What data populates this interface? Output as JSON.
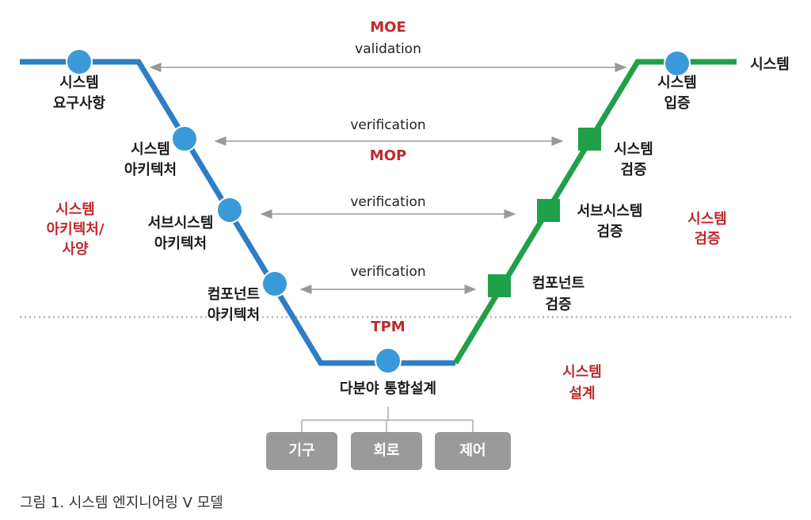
{
  "top": {
    "moe": "MOE",
    "validation": "validation",
    "mop": "MOP",
    "tpm": "TPM"
  },
  "verification": [
    "verification",
    "verification",
    "verification"
  ],
  "left_nodes": [
    {
      "lines": [
        "시스템",
        "요구사항"
      ]
    },
    {
      "lines": [
        "시스템",
        "아키텍처"
      ]
    },
    {
      "lines": [
        "서브시스템",
        "아키텍처"
      ]
    },
    {
      "lines": [
        "컴포넌트",
        "아키텍처"
      ]
    }
  ],
  "bottom_node": "다분야 통합설계",
  "right_nodes": [
    {
      "lines": [
        "시스템",
        "입증"
      ]
    },
    {
      "lines": [
        "시스템",
        "검증"
      ]
    },
    {
      "lines": [
        "서브시스템",
        "검증"
      ]
    },
    {
      "lines": [
        "컴포넌트",
        "검증"
      ]
    }
  ],
  "end_label": "시스템",
  "phase_labels": [
    {
      "lines": [
        "시스템",
        "아키텍처/",
        "사양"
      ]
    },
    {
      "lines": [
        "시스템",
        "검증"
      ]
    },
    {
      "lines": [
        "시스템",
        "설계"
      ]
    }
  ],
  "disciplines": [
    "기구",
    "회로",
    "제어"
  ],
  "caption": "그림 1. 시스템 엔지니어링 V 모델"
}
